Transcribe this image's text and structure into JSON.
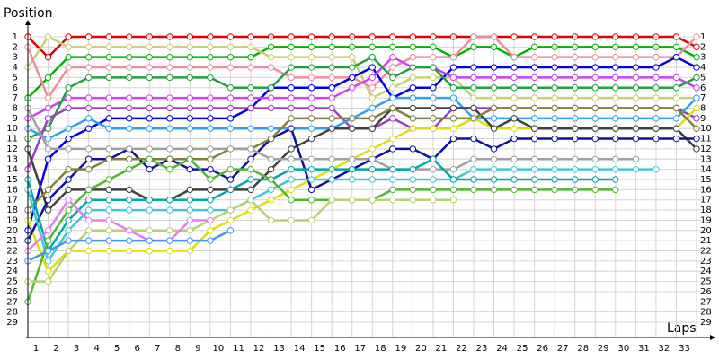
{
  "chart_data": {
    "type": "line",
    "title": "Position",
    "x_label": "Laps",
    "x": [
      0,
      1,
      2,
      3,
      4,
      5,
      6,
      7,
      8,
      9,
      10,
      11,
      12,
      13,
      14,
      15,
      16,
      17,
      18,
      19,
      20,
      21,
      22,
      23,
      24,
      25,
      26,
      27,
      28,
      29,
      30,
      31,
      32,
      33
    ],
    "xlim": [
      0,
      33
    ],
    "xticks": [
      1,
      2,
      3,
      4,
      5,
      6,
      7,
      8,
      9,
      10,
      11,
      12,
      13,
      14,
      15,
      16,
      17,
      18,
      19,
      20,
      21,
      22,
      23,
      24,
      25,
      26,
      27,
      28,
      29,
      30,
      31,
      32,
      33
    ],
    "ylim": [
      0,
      30
    ],
    "y_inverted": true,
    "yticks": [
      1,
      2,
      3,
      4,
      5,
      6,
      7,
      8,
      9,
      10,
      11,
      12,
      13,
      14,
      15,
      16,
      17,
      18,
      19,
      20,
      21,
      22,
      23,
      24,
      25,
      26,
      27,
      28,
      29
    ],
    "grid": true,
    "series": [
      {
        "color": "#e00000",
        "values": [
          1,
          3,
          1,
          1,
          1,
          1,
          1,
          1,
          1,
          1,
          1,
          1,
          1,
          1,
          1,
          1,
          1,
          1,
          1,
          1,
          1,
          1,
          1,
          1,
          1,
          1,
          1,
          1,
          1,
          1,
          1,
          1,
          1,
          2
        ]
      },
      {
        "color": "#00b400",
        "values": [
          7,
          5,
          3,
          3,
          3,
          3,
          3,
          3,
          3,
          3,
          3,
          3,
          2,
          2,
          2,
          2,
          2,
          2,
          2,
          2,
          2,
          3,
          2,
          2,
          3,
          2,
          2,
          2,
          2,
          2,
          2,
          2,
          2,
          3
        ]
      },
      {
        "color": "#c8d070",
        "values": [
          4,
          1,
          2,
          2,
          2,
          2,
          2,
          2,
          2,
          2,
          2,
          2,
          3,
          3,
          3,
          3,
          3,
          7,
          6,
          5,
          5,
          5,
          7,
          7,
          7,
          7,
          7,
          7,
          7,
          7,
          7,
          7,
          7,
          7
        ]
      },
      {
        "color": "#f08ca0",
        "values": [
          2,
          7,
          4,
          4,
          4,
          4,
          4,
          4,
          4,
          4,
          4,
          4,
          4,
          5,
          5,
          5,
          5,
          6,
          4,
          3,
          3,
          3,
          1,
          1,
          3,
          3,
          3,
          3,
          3,
          3,
          3,
          3,
          3,
          1
        ]
      },
      {
        "color": "#0000e6",
        "values": [
          20,
          13,
          11,
          10,
          9,
          9,
          9,
          9,
          9,
          9,
          9,
          8,
          6,
          6,
          6,
          6,
          5,
          4,
          7,
          6,
          6,
          4,
          4,
          4,
          4,
          4,
          4,
          4,
          4,
          4,
          4,
          4,
          3,
          4
        ]
      },
      {
        "color": "#d040f0",
        "values": [
          9,
          8,
          7,
          7,
          7,
          7,
          7,
          7,
          7,
          7,
          7,
          7,
          7,
          7,
          7,
          7,
          6,
          5,
          3,
          4,
          4,
          5,
          5,
          5,
          5,
          5,
          5,
          5,
          5,
          5,
          5,
          5,
          5,
          6
        ]
      },
      {
        "color": "#20a040",
        "values": [
          11,
          10,
          6,
          5,
          5,
          5,
          5,
          5,
          5,
          5,
          6,
          6,
          6,
          4,
          4,
          4,
          4,
          3,
          5,
          4,
          4,
          6,
          6,
          6,
          6,
          6,
          6,
          6,
          6,
          6,
          6,
          6,
          6,
          5
        ]
      },
      {
        "color": "#a040c0",
        "values": [
          14,
          9,
          8,
          8,
          8,
          8,
          8,
          8,
          8,
          8,
          8,
          8,
          8,
          8,
          8,
          8,
          10,
          10,
          9,
          10,
          10,
          8,
          8,
          8,
          8,
          8,
          8,
          8,
          8,
          8,
          8,
          8,
          8,
          9
        ]
      },
      {
        "color": "#30a0f0",
        "values": [
          10,
          11,
          10,
          9,
          10,
          10,
          10,
          10,
          10,
          10,
          10,
          10,
          10,
          10,
          10,
          10,
          9,
          8,
          7,
          7,
          7,
          7,
          9,
          9,
          9,
          9,
          9,
          9,
          9,
          9,
          9,
          9,
          9,
          7
        ]
      },
      {
        "color": "#e0e000",
        "values": [
          19,
          24,
          22,
          22,
          22,
          22,
          22,
          22,
          22,
          20,
          19,
          18,
          17,
          16,
          15,
          14,
          13,
          12,
          11,
          10,
          10,
          10,
          9,
          10,
          10,
          10,
          10,
          10,
          10,
          10,
          10,
          10,
          10,
          8
        ]
      },
      {
        "color": "#404040",
        "values": [
          12,
          18,
          16,
          16,
          16,
          16,
          17,
          17,
          16,
          16,
          16,
          16,
          14,
          12,
          11,
          10,
          10,
          10,
          8,
          8,
          8,
          8,
          8,
          10,
          9,
          10,
          10,
          10,
          10,
          10,
          10,
          10,
          10,
          12
        ]
      },
      {
        "color": "#1010a0",
        "values": [
          21,
          17,
          15,
          13,
          13,
          12,
          14,
          13,
          14,
          14,
          15,
          13,
          11,
          10,
          16,
          15,
          14,
          13,
          12,
          12,
          13,
          11,
          11,
          12,
          11,
          11,
          11,
          11,
          11,
          11,
          11,
          11,
          11,
          11
        ]
      },
      {
        "color": "#808040",
        "values": [
          18,
          16,
          14,
          14,
          13,
          13,
          13,
          13,
          13,
          13,
          12,
          12,
          11,
          9,
          9,
          9,
          9,
          9,
          8,
          9,
          9,
          9,
          9,
          8,
          8,
          8,
          8,
          8,
          8,
          8,
          8,
          8,
          8,
          10
        ]
      },
      {
        "color": "#a0a0a0",
        "values": [
          8,
          12,
          12,
          12,
          12,
          12,
          12,
          12,
          12,
          12,
          12,
          12,
          13,
          13,
          13,
          13,
          13,
          13,
          14,
          14,
          14,
          14,
          13,
          13,
          13,
          13,
          13,
          13,
          13,
          13,
          13,
          null,
          null,
          null
        ]
      },
      {
        "color": "#40c8d8",
        "values": [
          16,
          23,
          20,
          18,
          18,
          18,
          18,
          18,
          18,
          18,
          18,
          17,
          16,
          15,
          15,
          15,
          15,
          15,
          15,
          15,
          15,
          15,
          14,
          14,
          14,
          14,
          14,
          14,
          14,
          14,
          14,
          14,
          null,
          null
        ]
      },
      {
        "color": "#00a8a8",
        "values": [
          15,
          22,
          19,
          17,
          17,
          17,
          17,
          17,
          17,
          17,
          16,
          15,
          15,
          14,
          14,
          14,
          14,
          14,
          14,
          14,
          13,
          15,
          15,
          15,
          15,
          15,
          15,
          15,
          15,
          15,
          null,
          null,
          null,
          null
        ]
      },
      {
        "color": "#50b830",
        "values": [
          27,
          21,
          18,
          16,
          15,
          14,
          13,
          14,
          13,
          15,
          14,
          14,
          15,
          17,
          17,
          17,
          17,
          17,
          16,
          16,
          16,
          16,
          16,
          16,
          16,
          16,
          16,
          16,
          16,
          16,
          null,
          null,
          null,
          null
        ]
      },
      {
        "color": "#b8d070",
        "values": [
          25,
          25,
          22,
          20,
          20,
          20,
          20,
          20,
          20,
          19,
          18,
          17,
          19,
          19,
          19,
          17,
          17,
          17,
          17,
          17,
          17,
          17,
          null,
          null,
          null,
          null,
          null,
          null,
          null,
          null,
          null,
          null,
          null,
          null
        ]
      },
      {
        "color": "#e080f0",
        "values": [
          22,
          20,
          17,
          19,
          19,
          20,
          21,
          21,
          19,
          19,
          null,
          null,
          null,
          null,
          null,
          null,
          null,
          null,
          null,
          null,
          null,
          null,
          null,
          null,
          null,
          null,
          null,
          null,
          null,
          null,
          null,
          null,
          null,
          null
        ]
      },
      {
        "color": "#4098f0",
        "values": [
          23,
          22,
          21,
          21,
          21,
          21,
          21,
          21,
          21,
          21,
          20,
          null,
          null,
          null,
          null,
          null,
          null,
          null,
          null,
          null,
          null,
          null,
          null,
          null,
          null,
          null,
          null,
          null,
          null,
          null,
          null,
          null,
          null,
          null
        ]
      }
    ]
  }
}
